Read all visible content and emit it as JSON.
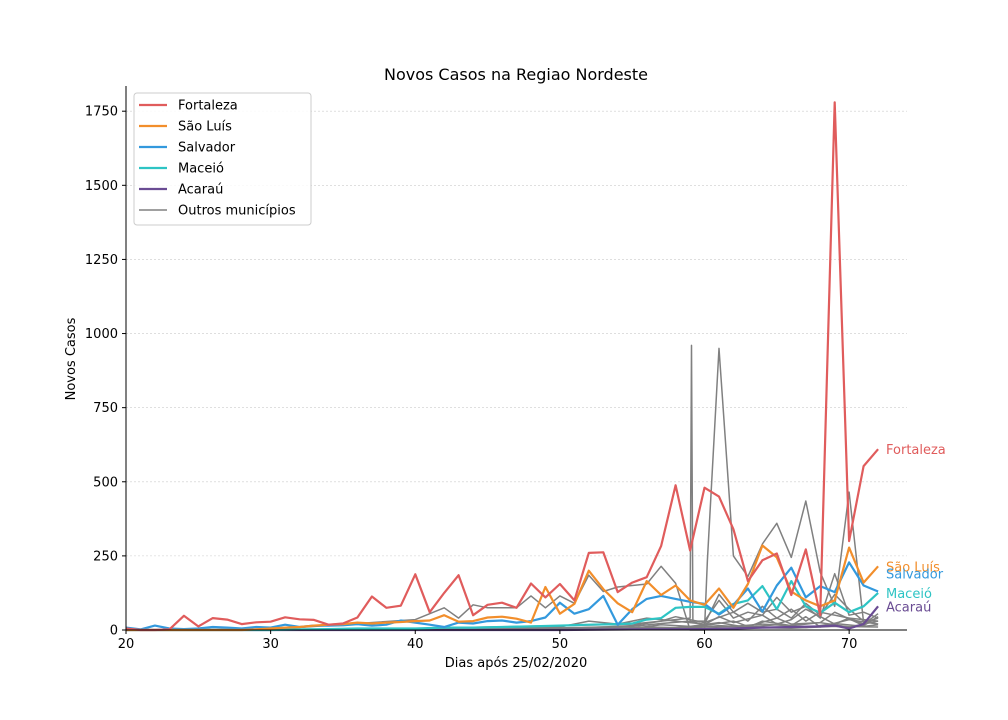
{
  "chart_data": {
    "type": "line",
    "title": "Novos Casos na Regiao Nordeste",
    "xlabel": "Dias após 25/02/2020",
    "ylabel": "Novos Casos",
    "xlim": [
      20,
      74
    ],
    "ylim": [
      0,
      1835
    ],
    "xticks": [
      20,
      30,
      40,
      50,
      60,
      70
    ],
    "yticks": [
      0,
      250,
      500,
      750,
      1000,
      1250,
      1500,
      1750
    ],
    "grid": "horizontal",
    "legend_position": "top-left",
    "series": [
      {
        "name": "Fortaleza",
        "end_label": "Fortaleza",
        "color": "#e05c5c",
        "x": [
          20,
          21,
          22,
          23,
          24,
          25,
          26,
          27,
          28,
          29,
          30,
          31,
          32,
          33,
          34,
          35,
          36,
          37,
          38,
          39,
          40,
          41,
          42,
          43,
          44,
          45,
          46,
          47,
          48,
          49,
          50,
          51,
          52,
          53,
          54,
          55,
          56,
          57,
          58,
          59,
          60,
          61,
          62,
          63,
          64,
          65,
          66,
          67,
          68,
          69,
          70,
          71,
          72
        ],
        "y": [
          5,
          0,
          0,
          2,
          48,
          12,
          40,
          35,
          20,
          26,
          28,
          43,
          36,
          34,
          18,
          22,
          42,
          113,
          75,
          82,
          188,
          60,
          125,
          185,
          50,
          85,
          92,
          75,
          157,
          110,
          155,
          100,
          260,
          262,
          128,
          160,
          178,
          283,
          488,
          268,
          480,
          450,
          340,
          165,
          235,
          258,
          118,
          272,
          50,
          1780,
          300,
          553,
          610
        ]
      },
      {
        "name": "São Luís",
        "end_label": "São Luís",
        "color": "#f28e2b",
        "x": [
          20,
          21,
          22,
          23,
          24,
          25,
          26,
          27,
          28,
          29,
          30,
          31,
          32,
          33,
          34,
          35,
          36,
          37,
          38,
          39,
          40,
          41,
          42,
          43,
          44,
          45,
          46,
          47,
          48,
          49,
          50,
          51,
          52,
          53,
          54,
          55,
          56,
          57,
          58,
          59,
          60,
          61,
          62,
          63,
          64,
          65,
          66,
          67,
          68,
          69,
          70,
          71,
          72
        ],
        "y": [
          0,
          0,
          0,
          0,
          0,
          0,
          0,
          0,
          0,
          2,
          5,
          8,
          10,
          15,
          18,
          20,
          25,
          22,
          25,
          27,
          30,
          32,
          50,
          28,
          30,
          42,
          45,
          38,
          25,
          145,
          55,
          88,
          200,
          138,
          90,
          60,
          165,
          118,
          150,
          100,
          85,
          140,
          75,
          155,
          285,
          245,
          130,
          100,
          80,
          100,
          278,
          160,
          215
        ]
      },
      {
        "name": "Salvador",
        "end_label": "Salvador",
        "color": "#3399dd",
        "x": [
          20,
          21,
          22,
          23,
          24,
          25,
          26,
          27,
          28,
          29,
          30,
          31,
          32,
          33,
          34,
          35,
          36,
          37,
          38,
          39,
          40,
          41,
          42,
          43,
          44,
          45,
          46,
          47,
          48,
          49,
          50,
          51,
          52,
          53,
          54,
          55,
          56,
          57,
          58,
          59,
          60,
          61,
          62,
          63,
          64,
          65,
          66,
          67,
          68,
          69,
          70,
          71,
          72
        ],
        "y": [
          8,
          2,
          15,
          5,
          3,
          5,
          10,
          8,
          5,
          10,
          8,
          18,
          10,
          15,
          15,
          16,
          20,
          15,
          18,
          32,
          25,
          18,
          10,
          25,
          22,
          30,
          32,
          25,
          30,
          42,
          92,
          55,
          70,
          115,
          18,
          70,
          105,
          115,
          105,
          95,
          88,
          52,
          85,
          140,
          62,
          150,
          210,
          110,
          148,
          128,
          228,
          150,
          130
        ]
      },
      {
        "name": "Maceió",
        "end_label": "Maceió",
        "color": "#2ec4c4",
        "x": [
          20,
          22,
          24,
          26,
          28,
          30,
          32,
          34,
          36,
          38,
          40,
          42,
          44,
          46,
          48,
          50,
          52,
          54,
          55,
          56,
          57,
          58,
          59,
          60,
          61,
          62,
          63,
          64,
          65,
          66,
          67,
          68,
          69,
          70,
          71,
          72
        ],
        "y": [
          0,
          0,
          0,
          0,
          0,
          0,
          2,
          3,
          5,
          5,
          5,
          8,
          8,
          10,
          12,
          15,
          18,
          20,
          22,
          35,
          40,
          75,
          78,
          78,
          55,
          88,
          100,
          148,
          70,
          165,
          80,
          58,
          92,
          60,
          80,
          125
        ]
      },
      {
        "name": "Acaraú",
        "end_label": "Acaraú",
        "color": "#6a4c93",
        "x": [
          20,
          25,
          30,
          35,
          40,
          45,
          50,
          55,
          60,
          62,
          64,
          66,
          68,
          69,
          70,
          71,
          72
        ],
        "y": [
          0,
          0,
          0,
          0,
          0,
          0,
          0,
          2,
          3,
          5,
          8,
          10,
          12,
          15,
          5,
          20,
          80
        ]
      }
    ],
    "other_series": {
      "name": "Outros municípios",
      "color": "#808080",
      "lines": [
        {
          "x": [
            20,
            30,
            40,
            42,
            43,
            44,
            45,
            46,
            47,
            48,
            49,
            50,
            51,
            52,
            53,
            54,
            55,
            56,
            57,
            58,
            59,
            59.2,
            60,
            60.2,
            61,
            62,
            63,
            64,
            65,
            66,
            67,
            68,
            69,
            70,
            71,
            72
          ],
          "y": [
            0,
            2,
            35,
            75,
            40,
            85,
            75,
            75,
            75,
            115,
            75,
            115,
            90,
            185,
            130,
            145,
            150,
            155,
            215,
            158,
            0,
            0,
            0,
            235,
            950,
            250,
            180,
            290,
            360,
            245,
            435,
            195,
            80,
            465,
            25,
            40
          ]
        },
        {
          "x": [
            20,
            30,
            40,
            45,
            50,
            55,
            56,
            57,
            58,
            59,
            59.1,
            59.2,
            60,
            61,
            62,
            63,
            64,
            65,
            66,
            67,
            68,
            69,
            70,
            71,
            72
          ],
          "y": [
            0,
            0,
            5,
            10,
            15,
            20,
            25,
            30,
            35,
            40,
            960,
            30,
            30,
            100,
            40,
            60,
            50,
            110,
            60,
            80,
            40,
            190,
            50,
            60,
            40
          ]
        },
        {
          "x": [
            20,
            35,
            45,
            50,
            52,
            54,
            56,
            58,
            60,
            61,
            62,
            63,
            64,
            65,
            66,
            67,
            68,
            69,
            70,
            71,
            72
          ],
          "y": [
            0,
            0,
            5,
            10,
            30,
            20,
            40,
            30,
            20,
            120,
            60,
            90,
            60,
            70,
            40,
            90,
            50,
            120,
            70,
            30,
            20
          ]
        },
        {
          "x": [
            20,
            40,
            50,
            53,
            55,
            57,
            58,
            60,
            62,
            63,
            64,
            65,
            66,
            67,
            68,
            70,
            71,
            72
          ],
          "y": [
            0,
            0,
            5,
            10,
            15,
            30,
            45,
            25,
            60,
            30,
            80,
            40,
            70,
            30,
            60,
            40,
            20,
            55
          ]
        },
        {
          "x": [
            20,
            45,
            52,
            55,
            57,
            59,
            60,
            61,
            62,
            64,
            65,
            66,
            67,
            69,
            70,
            72
          ],
          "y": [
            0,
            2,
            8,
            12,
            22,
            30,
            18,
            45,
            25,
            50,
            20,
            35,
            70,
            20,
            40,
            30
          ]
        },
        {
          "x": [
            20,
            50,
            54,
            56,
            58,
            60,
            62,
            63,
            65,
            66,
            68,
            69,
            71,
            72
          ],
          "y": [
            0,
            3,
            6,
            10,
            8,
            15,
            30,
            12,
            40,
            20,
            25,
            60,
            15,
            45
          ]
        },
        {
          "x": [
            20,
            48,
            53,
            55,
            57,
            59,
            61,
            63,
            64,
            66,
            67,
            68,
            70,
            72
          ],
          "y": [
            0,
            5,
            10,
            5,
            18,
            12,
            25,
            8,
            30,
            15,
            45,
            10,
            35,
            20
          ]
        },
        {
          "x": [
            20,
            50,
            55,
            58,
            60,
            62,
            64,
            66,
            68,
            70,
            72
          ],
          "y": [
            0,
            0,
            5,
            8,
            10,
            12,
            20,
            15,
            25,
            10,
            30
          ]
        },
        {
          "x": [
            20,
            52,
            56,
            59,
            61,
            63,
            65,
            67,
            69,
            71,
            72
          ],
          "y": [
            0,
            2,
            4,
            6,
            15,
            10,
            18,
            8,
            22,
            12,
            18
          ]
        },
        {
          "x": [
            20,
            55,
            58,
            60,
            63,
            66,
            69,
            72
          ],
          "y": [
            0,
            1,
            3,
            5,
            8,
            6,
            12,
            10
          ]
        }
      ]
    }
  }
}
